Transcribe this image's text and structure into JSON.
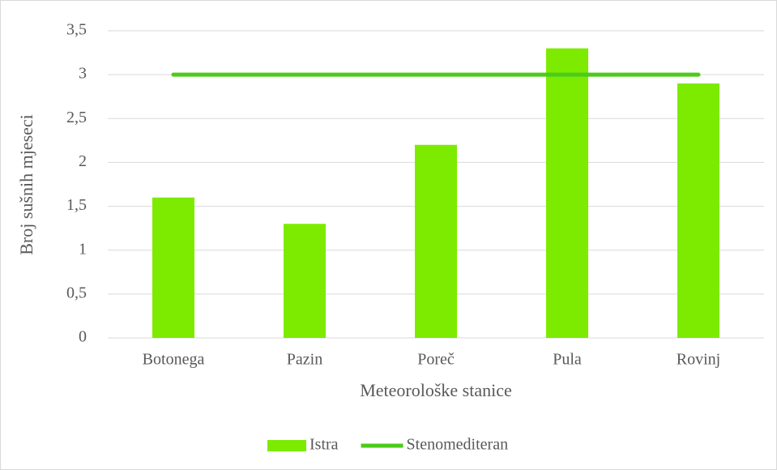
{
  "chart_data": {
    "type": "bar",
    "categories": [
      "Botonega",
      "Pazin",
      "Poreč",
      "Pula",
      "Rovinj"
    ],
    "series": [
      {
        "name": "Istra",
        "type": "bar",
        "color": "#7deb00",
        "values": [
          1.6,
          1.3,
          2.2,
          3.3,
          2.9
        ]
      },
      {
        "name": "Stenomediteran",
        "type": "line",
        "color": "#4ccb1a",
        "values": [
          3,
          3,
          3,
          3,
          3
        ]
      }
    ],
    "xlabel": "Meteorološke stanice",
    "ylabel": "Broj sušnih mjeseci",
    "ylim": [
      0,
      3.5
    ],
    "yticks": [
      0,
      {
        "value": 0.5,
        "label": "0,5"
      },
      1,
      {
        "value": 1.5,
        "label": "1,5"
      },
      2,
      {
        "value": 2.5,
        "label": "2,5"
      },
      3,
      {
        "value": 3.5,
        "label": "3,5"
      }
    ],
    "grid": true,
    "legend": "bottom"
  }
}
